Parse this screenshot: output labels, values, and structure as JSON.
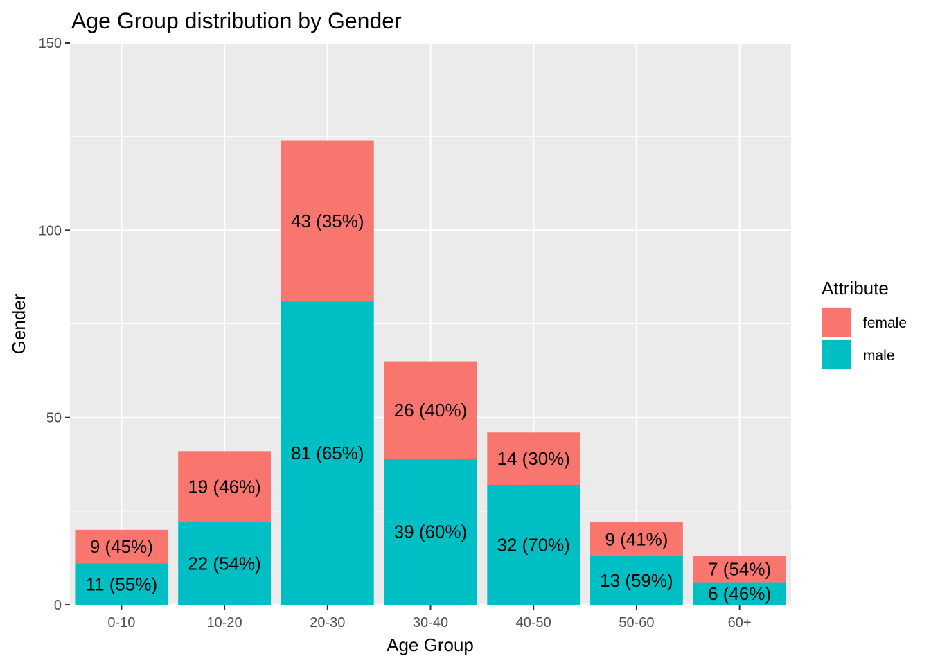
{
  "chart_data": {
    "type": "bar",
    "stacked": true,
    "title": "Age Group distribution by Gender",
    "xlabel": "Age Group",
    "ylabel": "Gender",
    "ylim": [
      0,
      150
    ],
    "yticks": [
      0,
      50,
      100,
      150
    ],
    "grid": true,
    "legend": {
      "title": "Attribute",
      "placement": "right"
    },
    "categories": [
      "0-10",
      "10-20",
      "20-30",
      "30-40",
      "40-50",
      "50-60",
      "60+"
    ],
    "series": [
      {
        "name": "male",
        "color": "#00BFC4",
        "values": [
          11,
          22,
          81,
          39,
          32,
          13,
          6
        ],
        "labels": [
          "11 (55%)",
          "22 (54%)",
          "81 (65%)",
          "39 (60%)",
          "32 (70%)",
          "13 (59%)",
          "6 (46%)"
        ]
      },
      {
        "name": "female",
        "color": "#F8766D",
        "values": [
          9,
          19,
          43,
          26,
          14,
          9,
          7
        ],
        "labels": [
          "9 (45%)",
          "19 (46%)",
          "43 (35%)",
          "26 (40%)",
          "14 (30%)",
          "9 (41%)",
          "7 (54%)"
        ]
      }
    ],
    "legend_order": [
      "female",
      "male"
    ],
    "panel_color": "#EBEBEB",
    "grid_color": "#FFFFFF"
  }
}
